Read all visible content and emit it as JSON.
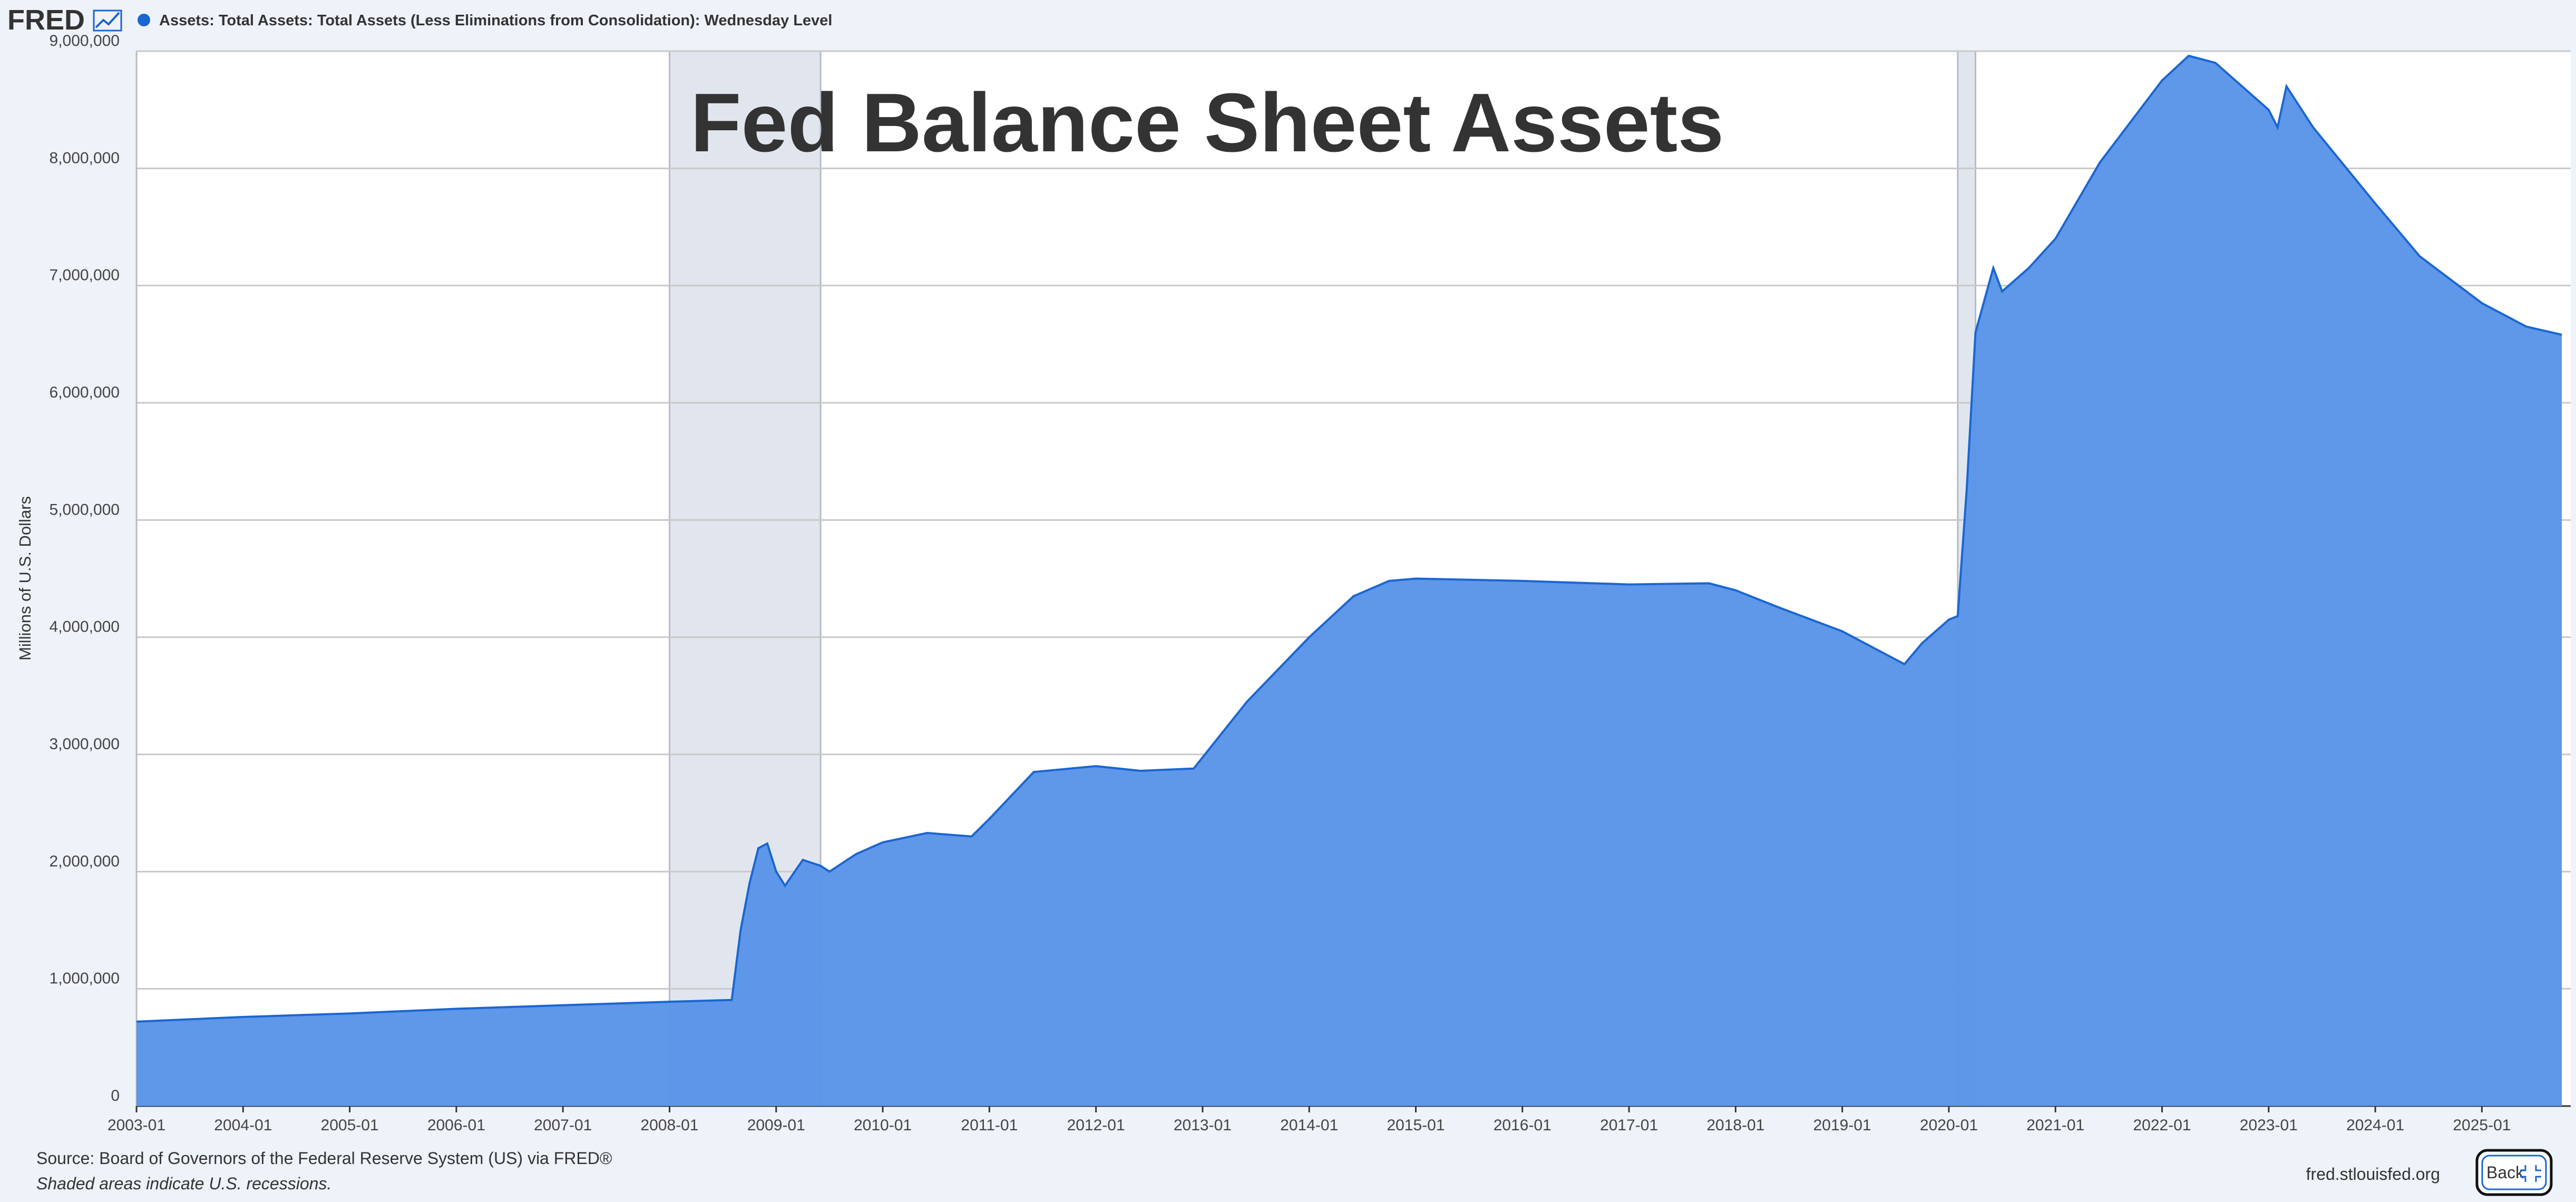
{
  "chart_data": {
    "type": "area",
    "title": "Fed Balance Sheet Assets",
    "ylabel": "Millions of U.S. Dollars",
    "x": [
      "2003-01",
      "2004-01",
      "2005-01",
      "2006-01",
      "2007-01",
      "2008-01",
      "2008-08",
      "2008-09",
      "2008-10",
      "2008-11",
      "2008-12",
      "2009-01",
      "2009-02",
      "2009-04",
      "2009-06",
      "2009-07",
      "2009-10",
      "2010-01",
      "2010-06",
      "2010-11",
      "2011-01",
      "2011-06",
      "2012-01",
      "2012-06",
      "2012-12",
      "2013-06",
      "2014-01",
      "2014-06",
      "2014-10",
      "2015-01",
      "2016-01",
      "2017-01",
      "2017-10",
      "2018-01",
      "2018-06",
      "2019-01",
      "2019-06",
      "2019-08",
      "2019-10",
      "2020-01",
      "2020-02",
      "2020-03",
      "2020-04",
      "2020-06",
      "2020-07",
      "2020-10",
      "2021-01",
      "2021-06",
      "2022-01",
      "2022-04",
      "2022-07",
      "2023-01",
      "2023-02",
      "2023-03",
      "2023-06",
      "2024-01",
      "2024-06",
      "2025-01",
      "2025-06",
      "2025-10"
    ],
    "series": [
      {
        "name": "Assets: Total Assets: Total Assets (Less Eliminations from Consolidation): Wednesday Level",
        "color": "#5a94e8",
        "line_color": "#1a66d2",
        "values": [
          720000,
          760000,
          790000,
          830000,
          860000,
          890000,
          905000,
          1500000,
          1900000,
          2200000,
          2240000,
          2000000,
          1880000,
          2100000,
          2050000,
          2000000,
          2150000,
          2250000,
          2330000,
          2300000,
          2450000,
          2850000,
          2900000,
          2860000,
          2880000,
          3450000,
          4000000,
          4350000,
          4480000,
          4500000,
          4480000,
          4450000,
          4460000,
          4400000,
          4250000,
          4050000,
          3850000,
          3770000,
          3950000,
          4150000,
          4180000,
          5250000,
          6600000,
          7150000,
          6950000,
          7150000,
          7400000,
          8050000,
          8750000,
          8960000,
          8900000,
          8500000,
          8350000,
          8700000,
          8350000,
          7700000,
          7250000,
          6850000,
          6650000,
          6580000
        ]
      }
    ],
    "recessions": [
      {
        "start": "2008-01",
        "end": "2009-06"
      },
      {
        "start": "2020-02",
        "end": "2020-04"
      }
    ],
    "recession_color": "#e1e6ee",
    "xlim": [
      "2003-01",
      "2025-11"
    ],
    "xticks": [
      "2003-01",
      "2004-01",
      "2005-01",
      "2006-01",
      "2007-01",
      "2008-01",
      "2009-01",
      "2010-01",
      "2011-01",
      "2012-01",
      "2013-01",
      "2014-01",
      "2015-01",
      "2016-01",
      "2017-01",
      "2018-01",
      "2019-01",
      "2020-01",
      "2021-01",
      "2022-01",
      "2023-01",
      "2024-01",
      "2025-01"
    ],
    "ylim": [
      0,
      9000000
    ],
    "yticks": [
      0,
      {
        "value": 1000000,
        "label": "1,000,000"
      },
      {
        "value": 2000000,
        "label": "2,000,000"
      },
      {
        "value": 3000000,
        "label": "3,000,000"
      },
      {
        "value": 4000000,
        "label": "4,000,000"
      },
      {
        "value": 5000000,
        "label": "5,000,000"
      },
      {
        "value": 6000000,
        "label": "6,000,000"
      },
      {
        "value": 7000000,
        "label": "7,000,000"
      },
      {
        "value": 8000000,
        "label": "8,000,000"
      },
      {
        "value": 9000000,
        "label": "9,000,000"
      }
    ],
    "grid": true
  },
  "header": {
    "logo": "FRED"
  },
  "footer": {
    "source": "Source: Board of Governors of the Federal Reserve System (US) via FRED®",
    "note": "Shaded areas indicate U.S. recessions.",
    "site": "fred.stlouisfed.org",
    "button": "Back"
  }
}
